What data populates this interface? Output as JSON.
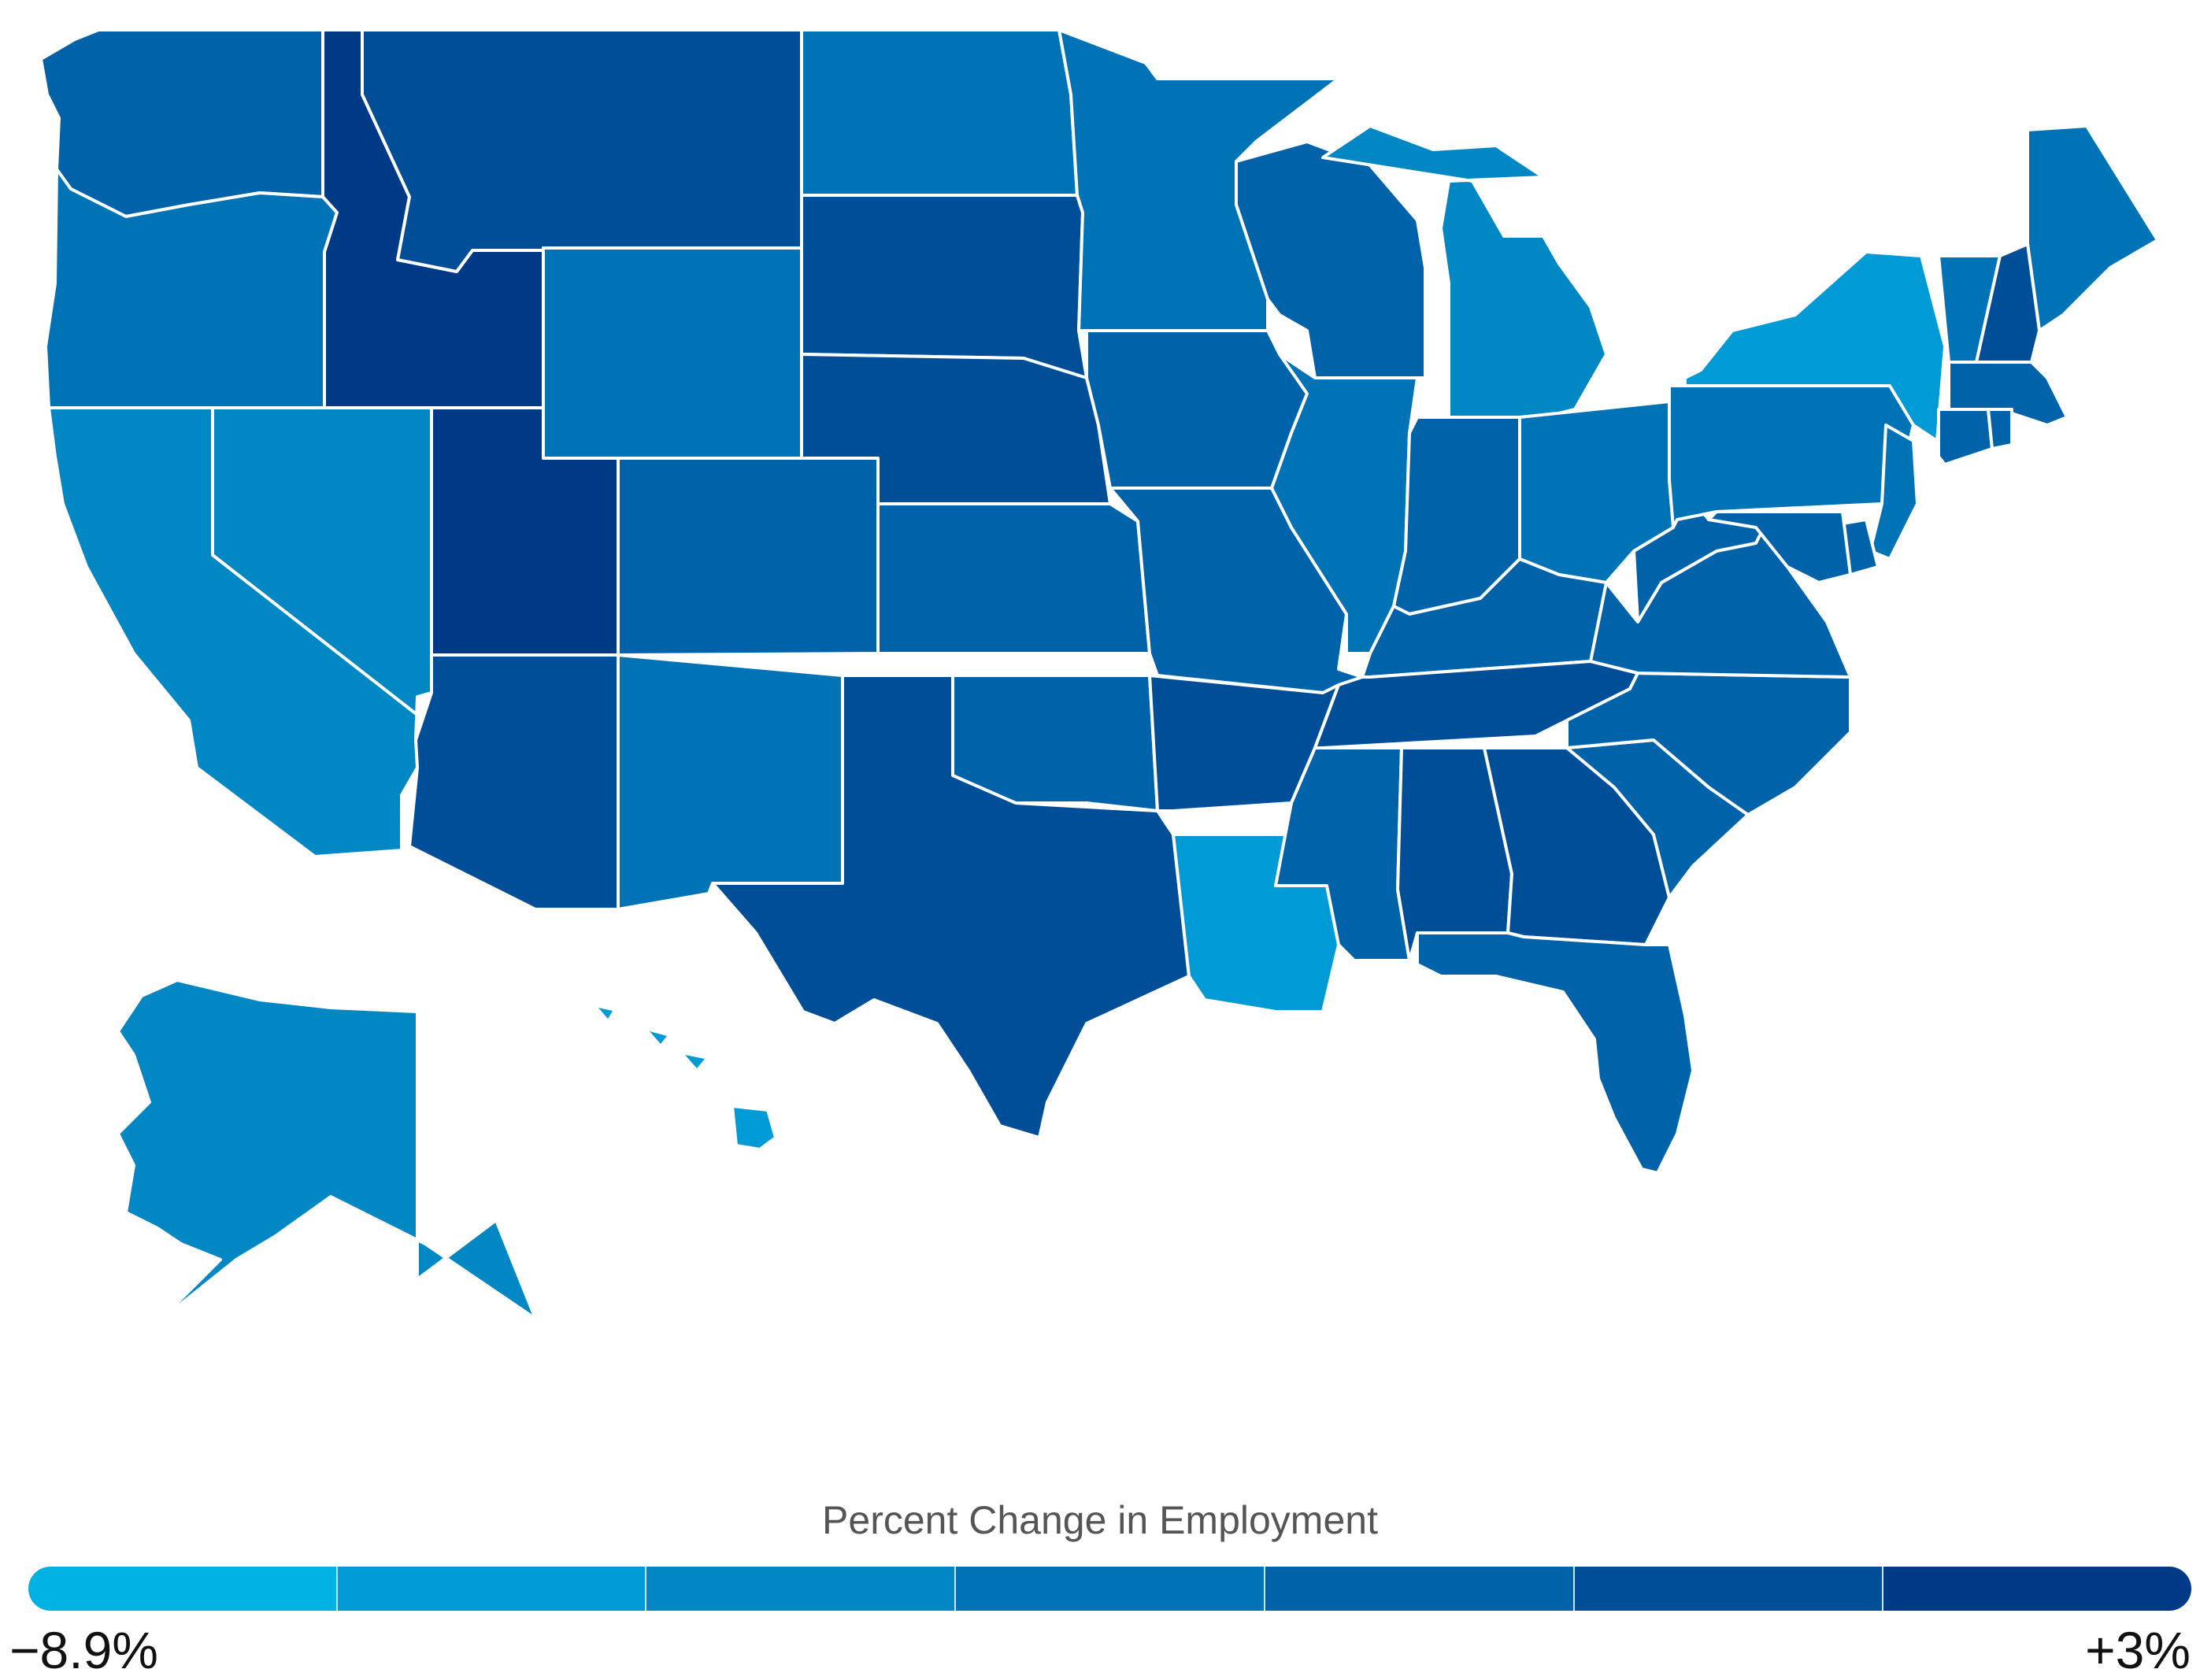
{
  "map": {
    "region": "United States",
    "legend": {
      "title": "Percent Change in Employment",
      "min_label": "−8.9%",
      "max_label": "+3%",
      "min_value": -8.9,
      "max_value": 3,
      "bins": [
        "#00b2e3",
        "#009ad6",
        "#0087c4",
        "#0073b6",
        "#0062a8",
        "#004e98",
        "#003a87"
      ]
    },
    "states": [
      {
        "name": "WA",
        "bin": 4
      },
      {
        "name": "OR",
        "bin": 3
      },
      {
        "name": "CA",
        "bin": 2
      },
      {
        "name": "NV",
        "bin": 2
      },
      {
        "name": "ID",
        "bin": 6
      },
      {
        "name": "MT",
        "bin": 5
      },
      {
        "name": "WY",
        "bin": 3
      },
      {
        "name": "UT",
        "bin": 6
      },
      {
        "name": "CO",
        "bin": 4
      },
      {
        "name": "AZ",
        "bin": 5
      },
      {
        "name": "NM",
        "bin": 3
      },
      {
        "name": "ND",
        "bin": 3
      },
      {
        "name": "SD",
        "bin": 5
      },
      {
        "name": "NE",
        "bin": 5
      },
      {
        "name": "KS",
        "bin": 4
      },
      {
        "name": "OK",
        "bin": 4
      },
      {
        "name": "TX",
        "bin": 5
      },
      {
        "name": "MN",
        "bin": 3
      },
      {
        "name": "IA",
        "bin": 4
      },
      {
        "name": "MO",
        "bin": 4
      },
      {
        "name": "AR",
        "bin": 5
      },
      {
        "name": "LA",
        "bin": 1
      },
      {
        "name": "WI",
        "bin": 4
      },
      {
        "name": "IL",
        "bin": 3
      },
      {
        "name": "MI",
        "bin": 2
      },
      {
        "name": "IN",
        "bin": 4
      },
      {
        "name": "OH",
        "bin": 3
      },
      {
        "name": "KY",
        "bin": 4
      },
      {
        "name": "TN",
        "bin": 5
      },
      {
        "name": "MS",
        "bin": 4
      },
      {
        "name": "AL",
        "bin": 5
      },
      {
        "name": "GA",
        "bin": 5
      },
      {
        "name": "FL",
        "bin": 4
      },
      {
        "name": "SC",
        "bin": 4
      },
      {
        "name": "NC",
        "bin": 4
      },
      {
        "name": "VA",
        "bin": 4
      },
      {
        "name": "WV",
        "bin": 4
      },
      {
        "name": "PA",
        "bin": 3
      },
      {
        "name": "NY",
        "bin": 1
      },
      {
        "name": "ME",
        "bin": 3
      },
      {
        "name": "VT",
        "bin": 3
      },
      {
        "name": "NH",
        "bin": 5
      },
      {
        "name": "MA",
        "bin": 4
      },
      {
        "name": "CT",
        "bin": 4
      },
      {
        "name": "RI",
        "bin": 4
      },
      {
        "name": "NJ",
        "bin": 3
      },
      {
        "name": "DE",
        "bin": 4
      },
      {
        "name": "MD",
        "bin": 4
      },
      {
        "name": "AK",
        "bin": 2
      },
      {
        "name": "HI",
        "bin": 1
      }
    ]
  }
}
